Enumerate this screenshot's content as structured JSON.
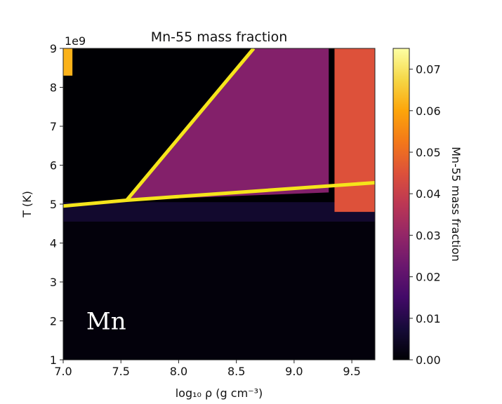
{
  "chart_data": {
    "type": "heatmap",
    "title": "Mn-55 mass fraction",
    "xlabel": "log₁₀ ρ (g cm⁻³)",
    "ylabel": "T (K)",
    "y_offset_label": "1e9",
    "xlim": [
      7.0,
      9.7
    ],
    "ylim": [
      1,
      9
    ],
    "x_ticks": [
      7.0,
      7.5,
      8.0,
      8.5,
      9.0,
      9.5
    ],
    "x_tick_labels": [
      "7.0",
      "7.5",
      "8.0",
      "8.5",
      "9.0",
      "9.5"
    ],
    "y_ticks": [
      1,
      2,
      3,
      4,
      5,
      6,
      7,
      8,
      9
    ],
    "y_tick_labels": [
      "1",
      "2",
      "3",
      "4",
      "5",
      "6",
      "7",
      "8",
      "9"
    ],
    "colorbar": {
      "label": "Mn-55 mass fraction",
      "range": [
        0.0,
        0.075
      ],
      "ticks": [
        0.0,
        0.01,
        0.02,
        0.03,
        0.04,
        0.05,
        0.06,
        0.07
      ],
      "tick_labels": [
        "0.00",
        "0.01",
        "0.02",
        "0.03",
        "0.04",
        "0.05",
        "0.06",
        "0.07"
      ],
      "colormap": "inferno"
    },
    "lines": [
      {
        "color": "#f5e51b",
        "x": [
          7.0,
          7.55,
          9.7
        ],
        "y": [
          4.95,
          5.1,
          5.55
        ]
      },
      {
        "color": "#f5e51b",
        "x": [
          7.55,
          8.65
        ],
        "y": [
          5.1,
          9.0
        ]
      }
    ],
    "annotations": [
      {
        "text": "Mn",
        "x": 7.2,
        "y": 2.0,
        "color": "#ffffff"
      }
    ],
    "regions": [
      {
        "desc": "low-T",
        "x": [
          7.0,
          9.7
        ],
        "y": [
          1.0,
          4.55
        ],
        "value": 0.001
      },
      {
        "desc": "transition band",
        "x": [
          7.0,
          9.7
        ],
        "y": [
          4.55,
          5.05
        ],
        "value": 0.006
      },
      {
        "desc": "upper wedge",
        "vertices": [
          [
            7.55,
            5.1
          ],
          [
            8.65,
            9.0
          ],
          [
            9.3,
            9.0
          ],
          [
            9.3,
            5.3
          ]
        ],
        "value": 0.027
      },
      {
        "desc": "right band",
        "x": [
          9.35,
          9.7
        ],
        "y": [
          4.8,
          9.0
        ],
        "value": 0.045
      },
      {
        "desc": "top-left corner",
        "x": [
          7.0,
          7.08
        ],
        "y": [
          8.3,
          9.0
        ],
        "value": 0.062
      }
    ]
  }
}
